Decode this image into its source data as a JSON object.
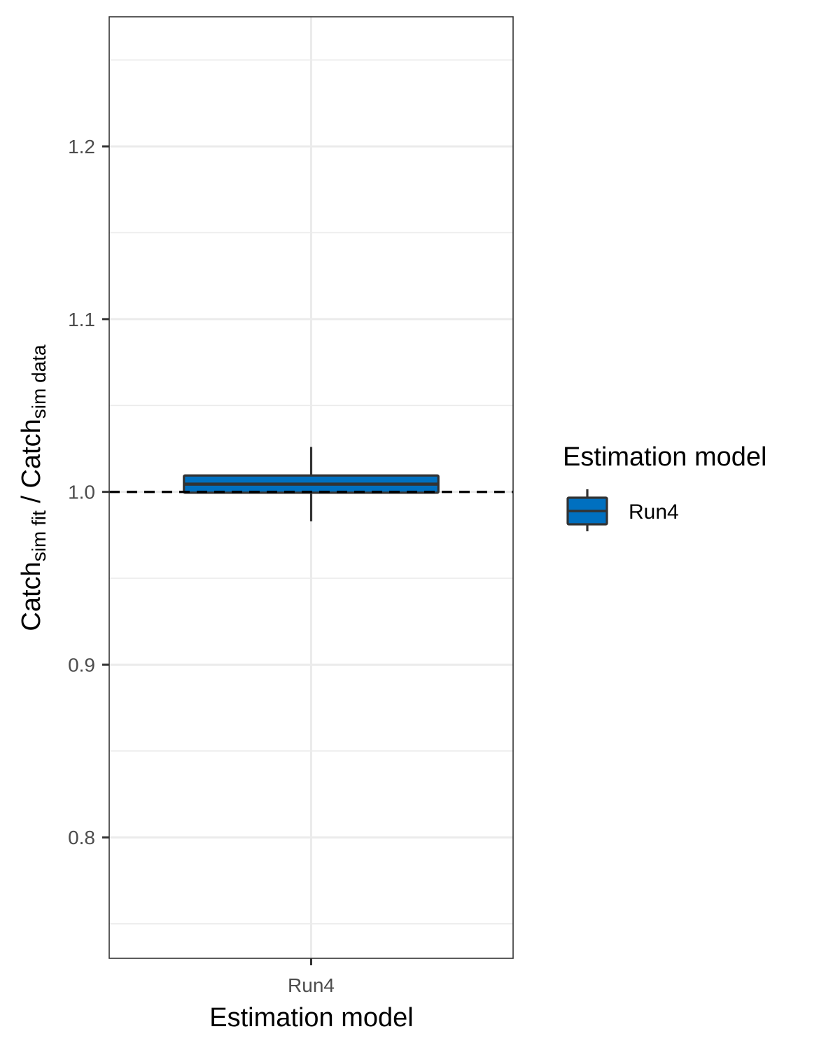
{
  "chart_data": {
    "type": "box",
    "title": "",
    "xlabel": "Estimation model",
    "ylabel": {
      "prefix": "Catch",
      "sub1": "sim fit",
      "middle": " / Catch",
      "sub2": "sim data"
    },
    "categories": [
      "Run4"
    ],
    "ylim": [
      0.73,
      1.275
    ],
    "yticks": [
      0.8,
      0.9,
      1.0,
      1.1,
      1.2
    ],
    "ytick_labels": [
      "0.8",
      "0.9",
      "1.0",
      "1.1",
      "1.2"
    ],
    "grid": true,
    "reference_line": {
      "y": 1.0,
      "style": "dashed",
      "color": "#000000"
    },
    "series": [
      {
        "name": "Run4",
        "color": "#0070c0",
        "whisker_low": 0.983,
        "q1": 0.9995,
        "median": 1.0045,
        "q3": 1.0095,
        "whisker_high": 1.026
      }
    ],
    "legend": {
      "title": "Estimation model",
      "position": "right",
      "entries": [
        "Run4"
      ]
    }
  }
}
